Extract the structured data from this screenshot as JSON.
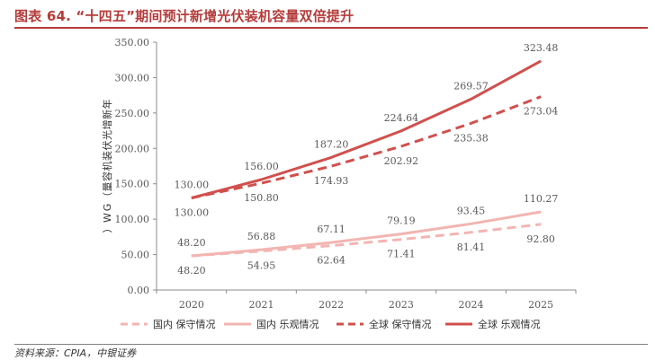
{
  "figure": {
    "title": "图表 64. “十四五”期间预计新增光伏装机容量双倍提升",
    "source": "资料来源：CPIA，中银证券"
  },
  "chart_data": {
    "type": "line",
    "x": [
      "2020",
      "2021",
      "2022",
      "2023",
      "2024",
      "2025"
    ],
    "ylabel": "年新增光伏装机容量（GW）",
    "ylim": [
      0,
      350
    ],
    "yticks": [
      "0.00",
      "50.00",
      "100.00",
      "150.00",
      "200.00",
      "250.00",
      "300.00",
      "350.00"
    ],
    "grid": false,
    "legend_position": "bottom",
    "series": [
      {
        "name": "国内 保守情况",
        "values": [
          48.2,
          54.95,
          62.64,
          71.41,
          81.41,
          92.8
        ],
        "labels": [
          "48.20",
          "54.95",
          "62.64",
          "71.41",
          "81.41",
          "92.80"
        ],
        "color": "#f2b5b2",
        "dashed": true
      },
      {
        "name": "国内 乐观情况",
        "values": [
          48.2,
          56.88,
          67.11,
          79.19,
          93.45,
          110.27
        ],
        "labels": [
          "48.20",
          "56.88",
          "67.11",
          "79.19",
          "93.45",
          "110.27"
        ],
        "color": "#f2b5b2",
        "dashed": false
      },
      {
        "name": "全球 保守情况",
        "values": [
          130.0,
          150.8,
          174.93,
          202.92,
          235.38,
          273.04
        ],
        "labels": [
          "130.00",
          "150.80",
          "174.93",
          "202.92",
          "235.38",
          "273.04"
        ],
        "color": "#d0504d",
        "dashed": true
      },
      {
        "name": "全球 乐观情况",
        "values": [
          130.0,
          156.0,
          187.2,
          224.64,
          269.57,
          323.48
        ],
        "labels": [
          "130.00",
          "156.00",
          "187.20",
          "224.64",
          "269.57",
          "323.48"
        ],
        "color": "#d0504d",
        "dashed": false
      }
    ]
  }
}
